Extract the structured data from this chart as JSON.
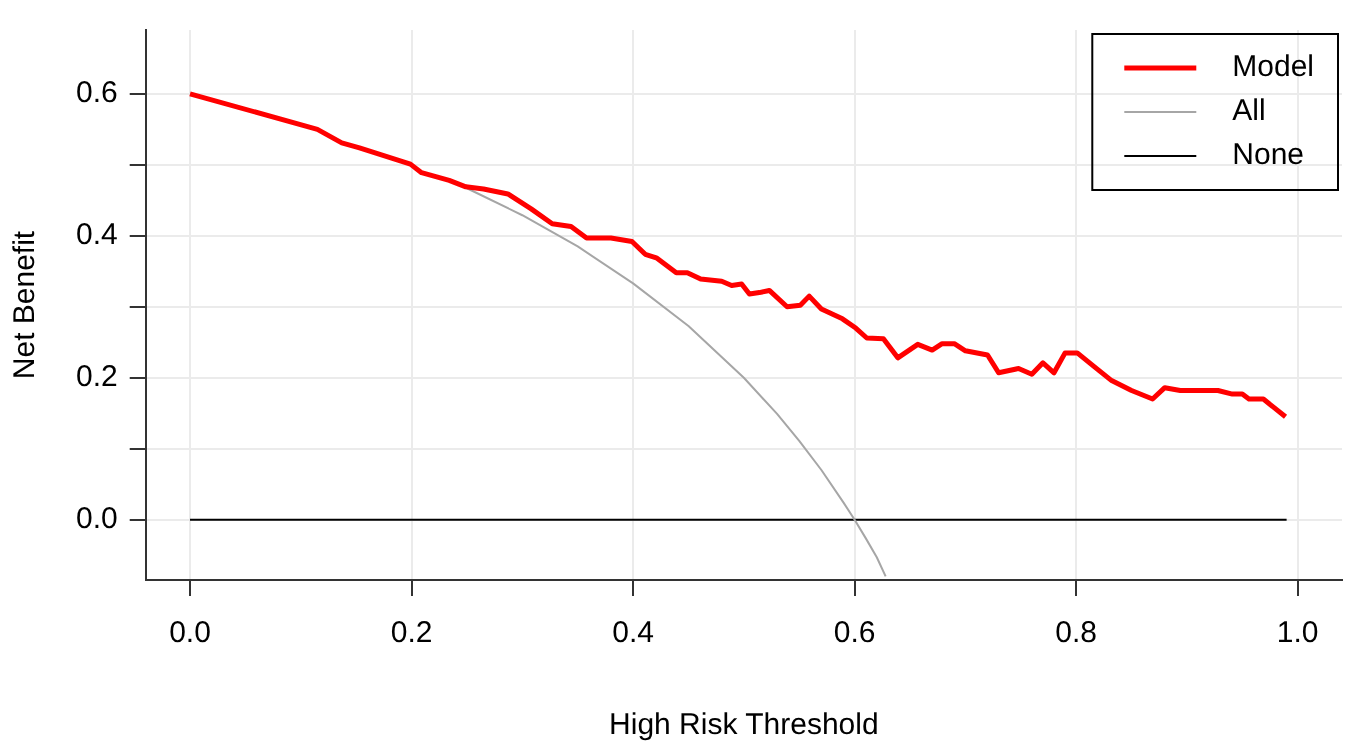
{
  "chart_data": {
    "type": "line",
    "xlabel": "High Risk Threshold",
    "ylabel": "Net Benefit",
    "xlim": [
      -0.04,
      1.04
    ],
    "ylim": [
      -0.085,
      0.69
    ],
    "xticks": [
      {
        "value": 0,
        "label": "0.0"
      },
      {
        "value": 0.2,
        "label": "0.2"
      },
      {
        "value": 0.4,
        "label": "0.4"
      },
      {
        "value": 0.6,
        "label": "0.6"
      },
      {
        "value": 0.8,
        "label": "0.8"
      },
      {
        "value": 1,
        "label": "1.0"
      }
    ],
    "yticks": [
      {
        "value": 0,
        "label": "0.0"
      },
      {
        "value": 0.1,
        "label": null
      },
      {
        "value": 0.2,
        "label": "0.2"
      },
      {
        "value": 0.3,
        "label": null
      },
      {
        "value": 0.4,
        "label": "0.4"
      },
      {
        "value": 0.5,
        "label": null
      },
      {
        "value": 0.6,
        "label": "0.6"
      }
    ],
    "grid": true,
    "legend": "top right",
    "marker": "none",
    "line_style": "solid",
    "series": [
      {
        "name": "Model",
        "color": "#ff0000",
        "x": [
          0,
          0.115,
          0.137,
          0.153,
          0.199,
          0.209,
          0.234,
          0.249,
          0.265,
          0.287,
          0.308,
          0.327,
          0.344,
          0.358,
          0.38,
          0.399,
          0.411,
          0.421,
          0.439,
          0.449,
          0.461,
          0.48,
          0.489,
          0.498,
          0.505,
          0.514,
          0.523,
          0.539,
          0.551,
          0.559,
          0.57,
          0.589,
          0.601,
          0.611,
          0.626,
          0.639,
          0.657,
          0.67,
          0.679,
          0.69,
          0.7,
          0.72,
          0.73,
          0.748,
          0.76,
          0.77,
          0.78,
          0.79,
          0.801,
          0.816,
          0.832,
          0.85,
          0.869,
          0.88,
          0.894,
          0.928,
          0.941,
          0.95,
          0.956,
          0.969,
          0.989
        ],
        "values": [
          0.6,
          0.55,
          0.531,
          0.524,
          0.501,
          0.489,
          0.478,
          0.469,
          0.466,
          0.459,
          0.438,
          0.417,
          0.413,
          0.397,
          0.397,
          0.392,
          0.374,
          0.369,
          0.348,
          0.348,
          0.339,
          0.336,
          0.33,
          0.332,
          0.318,
          0.32,
          0.323,
          0.3,
          0.302,
          0.315,
          0.297,
          0.283,
          0.27,
          0.256,
          0.255,
          0.228,
          0.247,
          0.239,
          0.248,
          0.248,
          0.238,
          0.232,
          0.207,
          0.213,
          0.205,
          0.221,
          0.207,
          0.235,
          0.235,
          0.216,
          0.196,
          0.182,
          0.17,
          0.186,
          0.182,
          0.182,
          0.177,
          0.177,
          0.17,
          0.17,
          0.145
        ]
      },
      {
        "name": "All",
        "color": "#a6a6a6",
        "x": [
          0.25,
          0.3,
          0.35,
          0.4,
          0.45,
          0.5,
          0.53,
          0.55,
          0.57,
          0.59,
          0.6,
          0.61,
          0.62,
          0.628
        ],
        "values": [
          0.467,
          0.429,
          0.385,
          0.333,
          0.273,
          0.2,
          0.149,
          0.111,
          0.07,
          0.024,
          0,
          -0.026,
          -0.053,
          -0.08
        ]
      },
      {
        "name": "None",
        "color": "#000000",
        "x": [
          0,
          0.99
        ],
        "values": [
          0,
          0
        ]
      }
    ]
  }
}
